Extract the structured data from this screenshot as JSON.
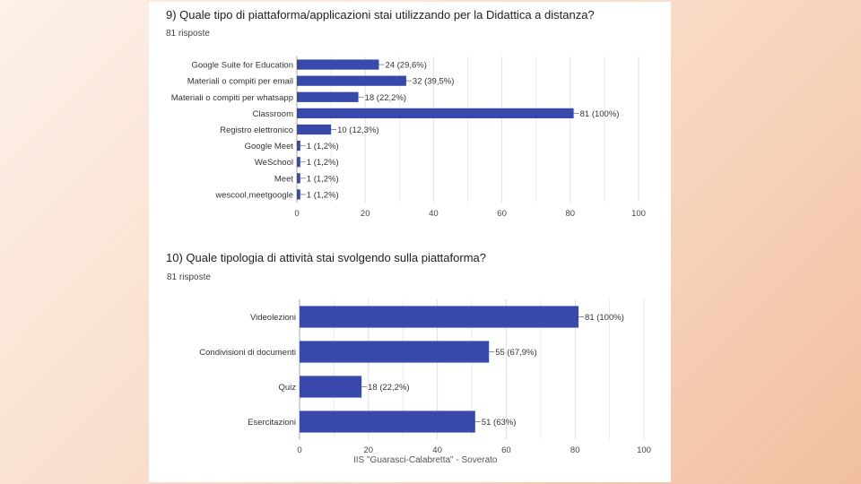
{
  "footer": "IIS \"Guarasci-Calabretta\" - Soverato",
  "colors": {
    "bar": "#3949ab",
    "grid": "#e0e0e0",
    "axis": "#aaaaaa"
  },
  "chart_data": [
    {
      "type": "bar",
      "orientation": "horizontal",
      "title": "9) Quale tipo di piattaforma/applicazioni stai utilizzando per la Didattica a distanza?",
      "subtitle": "81 risposte",
      "categories": [
        "Google Suite for Education",
        "Materiali o compiti per email",
        "Materiali o compiti per whatsapp",
        "Classroom",
        "Registro elettronico",
        "Google Meet",
        "WeSchool",
        "Meet",
        "wescool,meetgoogle"
      ],
      "values": [
        24,
        32,
        18,
        81,
        10,
        1,
        1,
        1,
        1
      ],
      "data_labels": [
        "24 (29,6%)",
        "32 (39,5%)",
        "18 (22,2%)",
        "81 (100%)",
        "10 (12,3%)",
        "1 (1,2%)",
        "1 (1,2%)",
        "1 (1,2%)",
        "1 (1,2%)"
      ],
      "xlim": [
        0,
        100
      ],
      "xticks": [
        "0",
        "20",
        "40",
        "60",
        "80",
        "100"
      ],
      "grid": true
    },
    {
      "type": "bar",
      "orientation": "horizontal",
      "title": "10) Quale tipologia di attività stai svolgendo sulla piattaforma?",
      "subtitle": "81 risposte",
      "categories": [
        "Videolezioni",
        "Condivisioni di documenti",
        "Quiz",
        "Esercitazioni"
      ],
      "values": [
        81,
        55,
        18,
        51
      ],
      "data_labels": [
        "81 (100%)",
        "55 (67,9%)",
        "18 (22,2%)",
        "51 (63%)"
      ],
      "xlim": [
        0,
        100
      ],
      "xticks": [
        "0",
        "20",
        "40",
        "60",
        "80",
        "100"
      ],
      "grid": true
    }
  ]
}
